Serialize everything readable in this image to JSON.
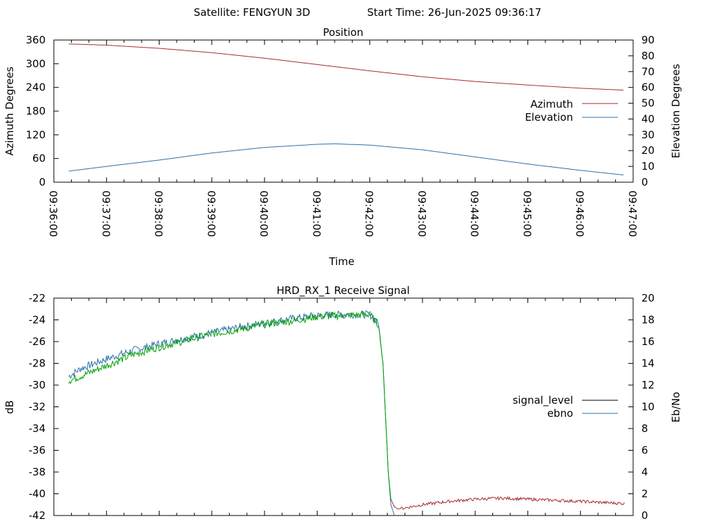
{
  "header": {
    "satellite": "Satellite: FENGYUN 3D",
    "start_time": "Start Time: 26-Jun-2025 09:36:17"
  },
  "chart_data": [
    {
      "type": "line",
      "title": "Position",
      "xlabel": "Time",
      "ylabel": "Azimuth Degrees",
      "y2label": "Elevation Degrees",
      "x_ticks": [
        "09:36:00",
        "09:37:00",
        "09:38:00",
        "09:39:00",
        "09:40:00",
        "09:41:00",
        "09:42:00",
        "09:43:00",
        "09:44:00",
        "09:45:00",
        "09:46:00",
        "09:47:00"
      ],
      "xlim": [
        "09:36:00",
        "09:47:00"
      ],
      "ylim": [
        0,
        360
      ],
      "y_ticks": [
        0,
        60,
        120,
        180,
        240,
        300,
        360
      ],
      "y2lim": [
        0,
        90
      ],
      "y2_ticks": [
        0,
        10,
        20,
        30,
        40,
        50,
        60,
        70,
        80,
        90
      ],
      "legend": "right",
      "series": [
        {
          "name": "Azimuth",
          "axis": "y",
          "color": "#a52a2a",
          "x": [
            "09:36:17",
            "09:37:00",
            "09:38:00",
            "09:39:00",
            "09:40:00",
            "09:41:00",
            "09:42:00",
            "09:43:00",
            "09:44:00",
            "09:45:00",
            "09:46:00",
            "09:46:50"
          ],
          "values": [
            350,
            347,
            339,
            328,
            314,
            298,
            282,
            267,
            255,
            246,
            238,
            233
          ]
        },
        {
          "name": "Elevation",
          "axis": "y2",
          "color": "#2a6fa8",
          "x": [
            "09:36:17",
            "09:37:00",
            "09:38:00",
            "09:39:00",
            "09:40:00",
            "09:41:00",
            "09:41:20",
            "09:42:00",
            "09:43:00",
            "09:44:00",
            "09:45:00",
            "09:46:00",
            "09:46:50"
          ],
          "values": [
            7,
            10,
            14,
            18.5,
            22,
            24,
            24.3,
            23.5,
            20.5,
            16,
            11.5,
            7.5,
            4.5
          ]
        }
      ]
    },
    {
      "type": "line",
      "title": "HRD_RX_1 Receive Signal",
      "xlabel": "",
      "ylabel": "dB",
      "y2label": "Eb/No",
      "xlim": [
        "09:36:00",
        "09:47:00"
      ],
      "ylim": [
        -42,
        -22
      ],
      "y_ticks": [
        -42,
        -40,
        -38,
        -36,
        -34,
        -32,
        -30,
        -28,
        -26,
        -24,
        -22
      ],
      "y2lim": [
        0,
        20
      ],
      "y2_ticks": [
        0,
        2,
        4,
        6,
        8,
        10,
        12,
        14,
        16,
        18,
        20
      ],
      "legend": "right",
      "series": [
        {
          "name": "signal_level",
          "axis": "y",
          "color": "#000000",
          "line_colors": {
            "before": "#00a000",
            "after": "#a52a2a"
          },
          "x": [
            "09:36:17",
            "09:36:30",
            "09:37:00",
            "09:37:30",
            "09:38:00",
            "09:38:30",
            "09:39:00",
            "09:39:30",
            "09:40:00",
            "09:40:30",
            "09:41:00",
            "09:41:30",
            "09:42:00",
            "09:42:10",
            "09:42:15",
            "09:42:18",
            "09:42:21",
            "09:42:24",
            "09:42:28",
            "09:42:32",
            "09:42:40",
            "09:43:00",
            "09:43:30",
            "09:44:00",
            "09:44:30",
            "09:45:00",
            "09:45:30",
            "09:46:00",
            "09:46:50"
          ],
          "values": [
            -29.6,
            -29.2,
            -28.2,
            -27.2,
            -26.5,
            -25.9,
            -25.3,
            -24.9,
            -24.4,
            -24.1,
            -23.7,
            -23.6,
            -23.5,
            -24.5,
            -28.0,
            -33.0,
            -38.0,
            -40.5,
            -41.2,
            -41.4,
            -41.3,
            -41.0,
            -40.7,
            -40.5,
            -40.4,
            -40.5,
            -40.6,
            -40.7,
            -40.9
          ],
          "noise": 0.35
        },
        {
          "name": "ebno",
          "axis": "y2",
          "color": "#2a6fa8",
          "x": [
            "09:36:17",
            "09:36:30",
            "09:37:00",
            "09:37:30",
            "09:38:00",
            "09:38:30",
            "09:39:00",
            "09:39:30",
            "09:40:00",
            "09:40:30",
            "09:41:00",
            "09:41:30",
            "09:42:00",
            "09:42:10",
            "09:42:15",
            "09:42:18",
            "09:42:21",
            "09:42:24",
            "09:42:28"
          ],
          "values": [
            12.8,
            13.5,
            14.4,
            15.2,
            15.8,
            16.3,
            16.8,
            17.3,
            17.7,
            18.1,
            18.4,
            18.5,
            18.5,
            17.6,
            14.0,
            9.0,
            4.0,
            1.0,
            0.0
          ],
          "noise": 0.35
        }
      ]
    }
  ]
}
